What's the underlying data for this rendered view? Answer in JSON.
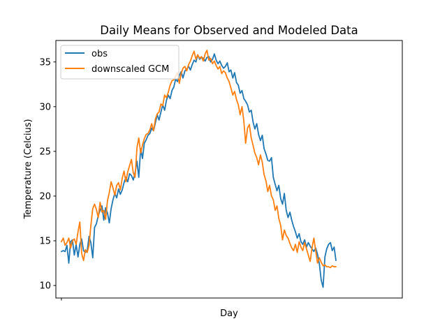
{
  "chart_data": {
    "type": "line",
    "title": "Daily Means for Observed and Modeled Data",
    "xlabel": "Day",
    "ylabel": "Temperature (Celcius)",
    "xlim": [
      -6,
      370
    ],
    "ylim": [
      8.6,
      37.4
    ],
    "x_ticks": [
      0
    ],
    "x_tick_labels": [
      ""
    ],
    "y_ticks": [
      10,
      15,
      20,
      25,
      30,
      35
    ],
    "y_tick_labels": [
      "10",
      "15",
      "20",
      "25",
      "30",
      "35"
    ],
    "grid": false,
    "legend": "top-left",
    "x_step": 2,
    "series": [
      {
        "name": "obs",
        "color": "#1f77b4",
        "values": [
          13.8,
          13.9,
          13.8,
          14.5,
          12.5,
          14.9,
          15.1,
          13.4,
          14.6,
          13.2,
          14.6,
          15.2,
          13.9,
          13.7,
          13.9,
          15.5,
          14.8,
          13.1,
          16.5,
          16.9,
          17.8,
          18.4,
          18.9,
          17.3,
          18.7,
          18.1,
          17.0,
          18.6,
          19.6,
          20.3,
          19.8,
          20.8,
          20.2,
          20.7,
          21.5,
          22.1,
          21.6,
          22.5,
          22.3,
          21.8,
          22.6,
          23.9,
          22.1,
          25.3,
          24.2,
          25.9,
          26.3,
          26.8,
          27.0,
          27.6,
          27.3,
          28.2,
          29.1,
          28.5,
          29.4,
          30.2,
          29.6,
          30.7,
          31.3,
          30.9,
          31.8,
          32.2,
          33.1,
          32.8,
          33.5,
          33.9,
          33.2,
          34.0,
          34.2,
          34.5,
          34.1,
          34.7,
          35.2,
          35.0,
          35.8,
          35.3,
          35.5,
          35.4,
          35.1,
          35.5,
          35.6,
          35.0,
          35.3,
          35.9,
          35.2,
          34.8,
          35.1,
          34.6,
          34.3,
          34.5,
          34.9,
          33.9,
          34.1,
          33.2,
          33.8,
          32.7,
          32.4,
          31.5,
          31.8,
          30.9,
          30.6,
          30.2,
          29.4,
          29.6,
          28.3,
          27.5,
          28.1,
          26.9,
          26.2,
          26.8,
          25.3,
          24.7,
          24.0,
          23.9,
          24.3,
          22.1,
          21.3,
          20.6,
          21.2,
          19.7,
          19.1,
          20.3,
          18.4,
          17.6,
          18.2,
          17.3,
          16.6,
          16.0,
          15.3,
          15.8,
          14.9,
          14.6,
          15.1,
          14.3,
          14.8,
          14.4,
          14.1,
          13.8,
          14.2,
          13.5,
          12.4,
          10.6,
          9.8,
          13.2,
          14.1,
          14.6,
          14.8,
          13.9,
          14.3,
          12.8
        ]
      },
      {
        "name": "downscaled GCM",
        "color": "#ff7f0e",
        "values": [
          14.9,
          15.3,
          14.5,
          14.8,
          15.3,
          14.2,
          15.0,
          15.2,
          14.6,
          16.0,
          17.1,
          13.6,
          12.8,
          14.0,
          13.7,
          14.5,
          16.7,
          18.6,
          19.1,
          18.5,
          17.6,
          19.3,
          18.2,
          18.4,
          17.4,
          19.5,
          20.4,
          21.6,
          20.9,
          20.1,
          21.2,
          21.5,
          20.7,
          22.0,
          22.8,
          21.6,
          22.7,
          23.4,
          24.1,
          22.6,
          22.1,
          25.4,
          26.5,
          24.8,
          25.7,
          26.4,
          26.9,
          27.0,
          27.4,
          28.1,
          27.3,
          28.6,
          29.2,
          29.4,
          30.3,
          30.1,
          31.3,
          31.0,
          31.6,
          32.4,
          32.9,
          33.0,
          33.4,
          33.8,
          32.6,
          33.7,
          34.3,
          34.5,
          34.0,
          34.7,
          35.1,
          35.7,
          36.2,
          35.3,
          35.8,
          35.4,
          35.6,
          35.1,
          35.9,
          36.3,
          35.2,
          35.4,
          34.8,
          35.1,
          34.6,
          34.2,
          34.5,
          33.7,
          34.0,
          33.8,
          33.2,
          32.8,
          32.1,
          31.3,
          31.7,
          30.8,
          30.2,
          29.1,
          30.0,
          28.4,
          25.9,
          27.6,
          28.0,
          26.5,
          25.7,
          24.8,
          24.3,
          23.5,
          24.6,
          23.8,
          22.4,
          21.7,
          20.5,
          21.2,
          20.0,
          19.6,
          18.4,
          18.9,
          17.5,
          16.7,
          15.1,
          16.2,
          15.6,
          15.3,
          14.7,
          14.2,
          13.9,
          14.6,
          13.7,
          14.9,
          14.3,
          13.9,
          14.8,
          14.1,
          13.4,
          12.7,
          14.2,
          15.3,
          13.9,
          12.5,
          13.1,
          12.6,
          12.2,
          12.3,
          12.1,
          12.1,
          12.0,
          12.2,
          12.1,
          12.1
        ]
      }
    ]
  }
}
